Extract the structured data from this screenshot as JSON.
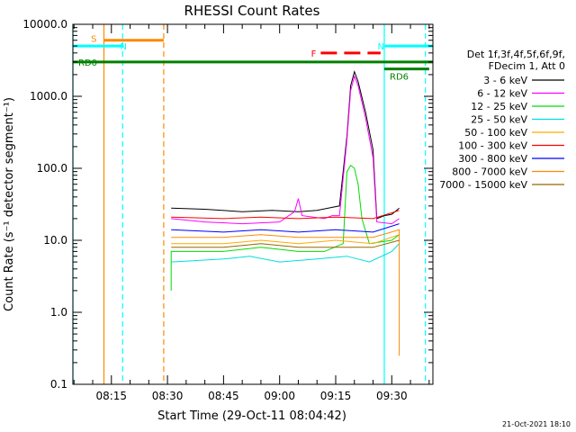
{
  "chart_data": {
    "type": "line",
    "title": "RHESSI Count Rates",
    "xlabel": "Start Time (29-Oct-11 08:04:42)",
    "ylabel": "Count Rate (s⁻¹ detector segment⁻¹)",
    "yscale": "log",
    "ylim": [
      0.1,
      10000
    ],
    "xlim": [
      "08:04:42",
      "09:41:00"
    ],
    "x_ticks": [
      "08:15",
      "08:30",
      "08:45",
      "09:00",
      "09:15",
      "09:30"
    ],
    "y_ticks": [
      "0.1",
      "1.0",
      "10.0",
      "100.0",
      "1000.0",
      "10000.0"
    ],
    "legend_header": [
      "Det 1f,3f,4f,5f,6f,9f,",
      "FDecim 1, Att 0"
    ],
    "legend_position": "right",
    "series": [
      {
        "name": "3 - 6 keV",
        "color": "#000000",
        "values": [
          [
            "08:31",
            28
          ],
          [
            "08:40",
            27
          ],
          [
            "08:50",
            25
          ],
          [
            "08:58",
            26
          ],
          [
            "09:05",
            25
          ],
          [
            "09:10",
            26
          ],
          [
            "09:13",
            28
          ],
          [
            "09:16",
            30
          ],
          [
            "09:18",
            280
          ],
          [
            "09:19",
            1400
          ],
          [
            "09:20",
            2200
          ],
          [
            "09:21",
            1600
          ],
          [
            "09:23",
            600
          ],
          [
            "09:25",
            180
          ],
          [
            "09:26",
            20
          ],
          [
            "09:28",
            22
          ],
          [
            "09:30",
            23
          ],
          [
            "09:32",
            28
          ]
        ]
      },
      {
        "name": "6 - 12 keV",
        "color": "#ff00ff",
        "values": [
          [
            "08:31",
            20
          ],
          [
            "08:40",
            18
          ],
          [
            "08:50",
            17
          ],
          [
            "09:00",
            18
          ],
          [
            "09:04",
            25
          ],
          [
            "09:05",
            38
          ],
          [
            "09:06",
            22
          ],
          [
            "09:12",
            20
          ],
          [
            "09:14",
            22
          ],
          [
            "09:16",
            22
          ],
          [
            "09:18",
            250
          ],
          [
            "09:19",
            1200
          ],
          [
            "09:20",
            1900
          ],
          [
            "09:21",
            1400
          ],
          [
            "09:23",
            500
          ],
          [
            "09:25",
            140
          ],
          [
            "09:26",
            18
          ],
          [
            "09:30",
            17
          ],
          [
            "09:32",
            20
          ]
        ]
      },
      {
        "name": "12 - 25 keV",
        "color": "#00dd00",
        "values": [
          [
            "08:31",
            2.0
          ],
          [
            "08:31",
            7
          ],
          [
            "08:45",
            7
          ],
          [
            "08:55",
            8
          ],
          [
            "09:05",
            7
          ],
          [
            "09:12",
            7
          ],
          [
            "09:17",
            9
          ],
          [
            "09:18",
            90
          ],
          [
            "09:19",
            110
          ],
          [
            "09:20",
            100
          ],
          [
            "09:21",
            60
          ],
          [
            "09:22",
            20
          ],
          [
            "09:24",
            9
          ],
          [
            "09:30",
            10
          ],
          [
            "09:32",
            12
          ]
        ]
      },
      {
        "name": "25 - 50 keV",
        "color": "#00dddd",
        "values": [
          [
            "08:31",
            5
          ],
          [
            "08:45",
            5.5
          ],
          [
            "08:52",
            6
          ],
          [
            "09:00",
            5
          ],
          [
            "09:10",
            5.5
          ],
          [
            "09:18",
            6
          ],
          [
            "09:24",
            5
          ],
          [
            "09:30",
            7
          ],
          [
            "09:32",
            9
          ]
        ]
      },
      {
        "name": "50 - 100 keV",
        "color": "#ffaa00",
        "values": [
          [
            "08:31",
            9
          ],
          [
            "08:45",
            9
          ],
          [
            "08:55",
            10
          ],
          [
            "09:05",
            9
          ],
          [
            "09:15",
            10
          ],
          [
            "09:25",
            9
          ],
          [
            "09:32",
            12
          ]
        ]
      },
      {
        "name": "100 - 300 keV",
        "color": "#ff0000",
        "values": [
          [
            "08:31",
            21
          ],
          [
            "08:45",
            20
          ],
          [
            "08:55",
            21
          ],
          [
            "09:05",
            20
          ],
          [
            "09:15",
            21
          ],
          [
            "09:25",
            20
          ],
          [
            "09:32",
            26
          ]
        ]
      },
      {
        "name": "300 - 800 keV",
        "color": "#0000ff",
        "values": [
          [
            "08:31",
            14
          ],
          [
            "08:45",
            13
          ],
          [
            "08:55",
            14
          ],
          [
            "09:05",
            13
          ],
          [
            "09:15",
            14
          ],
          [
            "09:25",
            13
          ],
          [
            "09:32",
            17
          ]
        ]
      },
      {
        "name": "800 - 7000 keV",
        "color": "#ff8800",
        "values": [
          [
            "08:31",
            11
          ],
          [
            "08:45",
            11
          ],
          [
            "08:55",
            12
          ],
          [
            "09:05",
            11
          ],
          [
            "09:15",
            11
          ],
          [
            "09:25",
            11
          ],
          [
            "09:32",
            14
          ],
          [
            "09:32",
            0.25
          ]
        ]
      },
      {
        "name": "7000 - 15000 keV",
        "color": "#996600",
        "values": [
          [
            "08:31",
            8
          ],
          [
            "08:45",
            8
          ],
          [
            "08:55",
            9
          ],
          [
            "09:05",
            8
          ],
          [
            "09:15",
            8
          ],
          [
            "09:25",
            8
          ],
          [
            "09:32",
            10
          ]
        ]
      }
    ],
    "bars": [
      {
        "label": "S",
        "color": "#ff8800",
        "start": "08:13",
        "end": "08:29",
        "y": 6000
      },
      {
        "label": "N",
        "color": "#00ffff",
        "start": "08:04:42",
        "end": "08:18",
        "y": 5000
      },
      {
        "label": "N",
        "color": "#00ffff",
        "start": "09:28",
        "end": "09:41",
        "y": 5000
      },
      {
        "label": "F",
        "color": "#ff0000",
        "start": "09:11",
        "end": "09:27",
        "y": 4000,
        "dashed": true
      },
      {
        "label": "RD0",
        "color": "#008000",
        "start": "08:04:42",
        "end": "09:41",
        "y": 3000
      },
      {
        "label": "RD6",
        "color": "#008000",
        "start": "09:28",
        "end": "09:40",
        "y": 2400
      }
    ],
    "vlines": [
      {
        "x": "08:04:42",
        "color": "#00ffff",
        "dashed": false
      },
      {
        "x": "08:13",
        "color": "#ff8800",
        "dashed": false
      },
      {
        "x": "08:18",
        "color": "#00ffff",
        "dashed": true
      },
      {
        "x": "08:29",
        "color": "#ff8800",
        "dashed": true
      },
      {
        "x": "09:28",
        "color": "#00ffff",
        "dashed": false
      },
      {
        "x": "09:39",
        "color": "#00ffff",
        "dashed": true
      }
    ]
  },
  "footer": {
    "timestamp": "21-Oct-2021 18:10"
  }
}
